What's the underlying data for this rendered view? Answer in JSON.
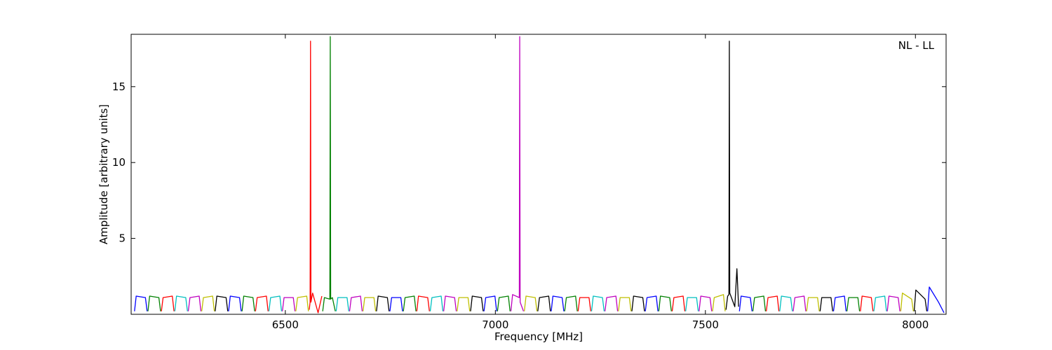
{
  "chart_data": {
    "type": "line",
    "annotation": "NL - LL",
    "xlabel": "Frequency [MHz]",
    "ylabel": "Amplitude [arbitrary units]",
    "xlim": [
      6133,
      8073
    ],
    "ylim": [
      0,
      18.45
    ],
    "xticks": [
      6500,
      7000,
      7500,
      8000
    ],
    "yticks": [
      5,
      10,
      15
    ],
    "series": [
      {
        "color": "#0000ff",
        "x": [
          6141,
          6145,
          6167,
          6171
        ],
        "values": [
          0.2,
          1.2,
          1.1,
          0.2
        ]
      },
      {
        "color": "#008000",
        "x": [
          6173,
          6177,
          6199,
          6203
        ],
        "values": [
          0.2,
          1.2,
          1.1,
          0.2
        ]
      },
      {
        "color": "#ff0000",
        "x": [
          6205,
          6209,
          6231,
          6235
        ],
        "values": [
          0.2,
          1.1,
          1.2,
          0.2
        ]
      },
      {
        "color": "#00bfbf",
        "x": [
          6237,
          6241,
          6263,
          6267
        ],
        "values": [
          0.2,
          1.2,
          1.1,
          0.2
        ]
      },
      {
        "color": "#bf00bf",
        "x": [
          6269,
          6273,
          6295,
          6299
        ],
        "values": [
          0.2,
          1.1,
          1.2,
          0.2
        ]
      },
      {
        "color": "#bfbf00",
        "x": [
          6301,
          6305,
          6327,
          6331
        ],
        "values": [
          0.2,
          1.1,
          1.2,
          0.2
        ]
      },
      {
        "color": "#000000",
        "x": [
          6333,
          6337,
          6359,
          6363
        ],
        "values": [
          0.2,
          1.2,
          1.1,
          0.2
        ]
      },
      {
        "color": "#0000ff",
        "x": [
          6365,
          6369,
          6391,
          6395
        ],
        "values": [
          0.2,
          1.2,
          1.1,
          0.2
        ]
      },
      {
        "color": "#008000",
        "x": [
          6397,
          6401,
          6423,
          6427
        ],
        "values": [
          0.2,
          1.2,
          1.1,
          0.2
        ]
      },
      {
        "color": "#ff0000",
        "x": [
          6429,
          6433,
          6455,
          6459
        ],
        "values": [
          0.2,
          1.1,
          1.2,
          0.2
        ]
      },
      {
        "color": "#00bfbf",
        "x": [
          6461,
          6465,
          6487,
          6491
        ],
        "values": [
          0.2,
          1.1,
          1.2,
          0.2
        ]
      },
      {
        "color": "#bf00bf",
        "x": [
          6493,
          6497,
          6519,
          6523
        ],
        "values": [
          0.2,
          1.1,
          1.1,
          0.2
        ]
      },
      {
        "color": "#bfbf00",
        "x": [
          6525,
          6529,
          6551,
          6555
        ],
        "values": [
          0.2,
          1.1,
          1.2,
          0.2
        ]
      },
      {
        "color": "#ff0000",
        "x": [
          6557,
          6559,
          6560,
          6561,
          6565,
          6578,
          6587
        ],
        "values": [
          0.3,
          0.8,
          18,
          0.8,
          1.4,
          0.1,
          1.2
        ]
      },
      {
        "color": "#008000",
        "x": [
          6589,
          6593,
          6606,
          6607,
          6608,
          6612,
          6619
        ],
        "values": [
          0.2,
          1.1,
          1.0,
          18.3,
          1.0,
          1.1,
          0.2
        ]
      },
      {
        "color": "#00bfbf",
        "x": [
          6621,
          6625,
          6647,
          6651
        ],
        "values": [
          0.2,
          1.1,
          1.1,
          0.2
        ]
      },
      {
        "color": "#bf00bf",
        "x": [
          6653,
          6657,
          6679,
          6683
        ],
        "values": [
          0.2,
          1.1,
          1.2,
          0.2
        ]
      },
      {
        "color": "#bfbf00",
        "x": [
          6685,
          6689,
          6711,
          6715
        ],
        "values": [
          0.2,
          1.1,
          1.1,
          0.2
        ]
      },
      {
        "color": "#000000",
        "x": [
          6717,
          6721,
          6743,
          6747
        ],
        "values": [
          0.2,
          1.2,
          1.1,
          0.2
        ]
      },
      {
        "color": "#0000ff",
        "x": [
          6749,
          6753,
          6775,
          6779
        ],
        "values": [
          0.2,
          1.1,
          1.1,
          0.2
        ]
      },
      {
        "color": "#008000",
        "x": [
          6781,
          6785,
          6807,
          6811
        ],
        "values": [
          0.2,
          1.1,
          1.2,
          0.2
        ]
      },
      {
        "color": "#ff0000",
        "x": [
          6813,
          6817,
          6839,
          6843
        ],
        "values": [
          0.2,
          1.2,
          1.1,
          0.2
        ]
      },
      {
        "color": "#00bfbf",
        "x": [
          6845,
          6849,
          6871,
          6875
        ],
        "values": [
          0.2,
          1.1,
          1.2,
          0.2
        ]
      },
      {
        "color": "#bf00bf",
        "x": [
          6877,
          6881,
          6903,
          6907
        ],
        "values": [
          0.2,
          1.2,
          1.1,
          0.2
        ]
      },
      {
        "color": "#bfbf00",
        "x": [
          6909,
          6913,
          6935,
          6939
        ],
        "values": [
          0.2,
          1.1,
          1.1,
          0.2
        ]
      },
      {
        "color": "#000000",
        "x": [
          6941,
          6945,
          6967,
          6971
        ],
        "values": [
          0.2,
          1.2,
          1.1,
          0.2
        ]
      },
      {
        "color": "#0000ff",
        "x": [
          6973,
          6977,
          6999,
          7003
        ],
        "values": [
          0.2,
          1.1,
          1.2,
          0.2
        ]
      },
      {
        "color": "#008000",
        "x": [
          7005,
          7009,
          7031,
          7035
        ],
        "values": [
          0.2,
          1.1,
          1.2,
          0.2
        ]
      },
      {
        "color": "#bf00bf",
        "x": [
          7037,
          7041,
          7057,
          7058,
          7059,
          7067
        ],
        "values": [
          0.2,
          1.3,
          1.1,
          18.3,
          0.8,
          0.2
        ]
      },
      {
        "color": "#bfbf00",
        "x": [
          7069,
          7073,
          7095,
          7099
        ],
        "values": [
          0.2,
          1.2,
          1.1,
          0.2
        ]
      },
      {
        "color": "#000000",
        "x": [
          7101,
          7105,
          7127,
          7131
        ],
        "values": [
          0.2,
          1.1,
          1.2,
          0.2
        ]
      },
      {
        "color": "#0000ff",
        "x": [
          7133,
          7137,
          7159,
          7163
        ],
        "values": [
          0.2,
          1.2,
          1.1,
          0.2
        ]
      },
      {
        "color": "#008000",
        "x": [
          7165,
          7169,
          7191,
          7195
        ],
        "values": [
          0.2,
          1.1,
          1.2,
          0.2
        ]
      },
      {
        "color": "#ff0000",
        "x": [
          7197,
          7201,
          7223,
          7227
        ],
        "values": [
          0.2,
          1.1,
          1.1,
          0.2
        ]
      },
      {
        "color": "#00bfbf",
        "x": [
          7229,
          7233,
          7255,
          7259
        ],
        "values": [
          0.2,
          1.2,
          1.1,
          0.2
        ]
      },
      {
        "color": "#bf00bf",
        "x": [
          7261,
          7265,
          7287,
          7291
        ],
        "values": [
          0.2,
          1.1,
          1.2,
          0.2
        ]
      },
      {
        "color": "#bfbf00",
        "x": [
          7293,
          7297,
          7319,
          7323
        ],
        "values": [
          0.2,
          1.1,
          1.1,
          0.2
        ]
      },
      {
        "color": "#000000",
        "x": [
          7325,
          7329,
          7351,
          7355
        ],
        "values": [
          0.2,
          1.2,
          1.1,
          0.2
        ]
      },
      {
        "color": "#0000ff",
        "x": [
          7357,
          7361,
          7383,
          7387
        ],
        "values": [
          0.2,
          1.1,
          1.2,
          0.2
        ]
      },
      {
        "color": "#008000",
        "x": [
          7389,
          7393,
          7415,
          7419
        ],
        "values": [
          0.2,
          1.2,
          1.1,
          0.2
        ]
      },
      {
        "color": "#ff0000",
        "x": [
          7421,
          7425,
          7447,
          7451
        ],
        "values": [
          0.2,
          1.1,
          1.2,
          0.2
        ]
      },
      {
        "color": "#00bfbf",
        "x": [
          7453,
          7457,
          7479,
          7483
        ],
        "values": [
          0.2,
          1.1,
          1.1,
          0.2
        ]
      },
      {
        "color": "#bf00bf",
        "x": [
          7485,
          7489,
          7511,
          7515
        ],
        "values": [
          0.2,
          1.2,
          1.1,
          0.2
        ]
      },
      {
        "color": "#bfbf00",
        "x": [
          7517,
          7521,
          7543,
          7547
        ],
        "values": [
          0.2,
          1.1,
          1.3,
          0.2
        ]
      },
      {
        "color": "#000000",
        "x": [
          7549,
          7553,
          7556,
          7557,
          7558,
          7570,
          7575,
          7579
        ],
        "values": [
          0.3,
          1.2,
          1.3,
          18,
          1.4,
          0.5,
          3.0,
          0.5
        ]
      },
      {
        "color": "#0000ff",
        "x": [
          7581,
          7585,
          7607,
          7611
        ],
        "values": [
          0.2,
          1.2,
          1.1,
          0.2
        ]
      },
      {
        "color": "#008000",
        "x": [
          7613,
          7617,
          7639,
          7643
        ],
        "values": [
          0.2,
          1.1,
          1.2,
          0.2
        ]
      },
      {
        "color": "#ff0000",
        "x": [
          7645,
          7649,
          7671,
          7675
        ],
        "values": [
          0.2,
          1.1,
          1.2,
          0.2
        ]
      },
      {
        "color": "#00bfbf",
        "x": [
          7677,
          7681,
          7703,
          7707
        ],
        "values": [
          0.2,
          1.2,
          1.1,
          0.2
        ]
      },
      {
        "color": "#bf00bf",
        "x": [
          7709,
          7713,
          7735,
          7739
        ],
        "values": [
          0.2,
          1.1,
          1.2,
          0.2
        ]
      },
      {
        "color": "#bfbf00",
        "x": [
          7741,
          7745,
          7767,
          7771
        ],
        "values": [
          0.2,
          1.1,
          1.1,
          0.2
        ]
      },
      {
        "color": "#000000",
        "x": [
          7773,
          7777,
          7799,
          7803
        ],
        "values": [
          0.2,
          1.1,
          1.1,
          0.2
        ]
      },
      {
        "color": "#0000ff",
        "x": [
          7805,
          7809,
          7831,
          7835
        ],
        "values": [
          0.2,
          1.1,
          1.2,
          0.2
        ]
      },
      {
        "color": "#008000",
        "x": [
          7837,
          7841,
          7863,
          7867
        ],
        "values": [
          0.2,
          1.1,
          1.1,
          0.2
        ]
      },
      {
        "color": "#ff0000",
        "x": [
          7869,
          7873,
          7895,
          7899
        ],
        "values": [
          0.2,
          1.2,
          1.1,
          0.2
        ]
      },
      {
        "color": "#00bfbf",
        "x": [
          7901,
          7905,
          7927,
          7931
        ],
        "values": [
          0.2,
          1.1,
          1.2,
          0.2
        ]
      },
      {
        "color": "#bf00bf",
        "x": [
          7933,
          7937,
          7959,
          7963
        ],
        "values": [
          0.2,
          1.2,
          1.1,
          0.2
        ]
      },
      {
        "color": "#bfbf00",
        "x": [
          7965,
          7969,
          7991,
          7995
        ],
        "values": [
          0.2,
          1.4,
          1.0,
          0.2
        ]
      },
      {
        "color": "#000000",
        "x": [
          7997,
          8001,
          8023,
          8027
        ],
        "values": [
          0.2,
          1.6,
          1.0,
          0.2
        ]
      },
      {
        "color": "#0000ff",
        "x": [
          8029,
          8033,
          8055,
          8068
        ],
        "values": [
          0.2,
          1.8,
          0.8,
          0.1
        ]
      }
    ]
  }
}
